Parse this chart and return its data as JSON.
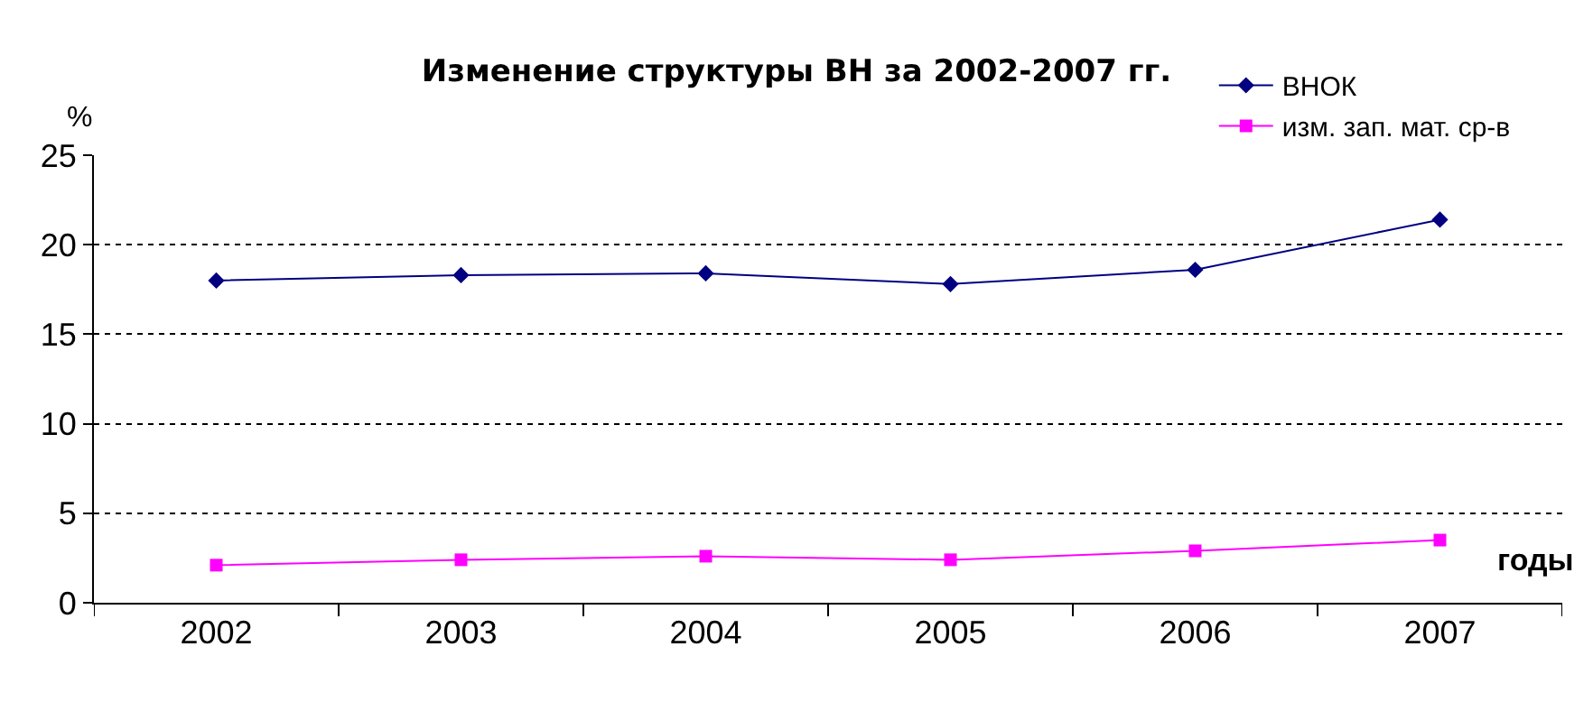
{
  "chart_data": {
    "type": "line",
    "title": "Изменение структуры ВН за 2002-2007 гг.",
    "xlabel": "годы",
    "ylabel": "%",
    "categories": [
      "2002",
      "2003",
      "2004",
      "2005",
      "2006",
      "2007"
    ],
    "series": [
      {
        "name": "ВНОК",
        "color": "#000080",
        "marker": "diamond",
        "values": [
          18.0,
          18.3,
          18.4,
          17.8,
          18.6,
          21.4
        ]
      },
      {
        "name": "изм. зап. мат. ср-в",
        "color": "#ff00ff",
        "marker": "square",
        "values": [
          2.1,
          2.4,
          2.6,
          2.4,
          2.9,
          3.5
        ]
      }
    ],
    "ylim": [
      0,
      25
    ],
    "yticks": [
      0,
      5,
      10,
      15,
      20,
      25
    ],
    "grid": "y",
    "legend": "top right",
    "line_style": "solid"
  }
}
